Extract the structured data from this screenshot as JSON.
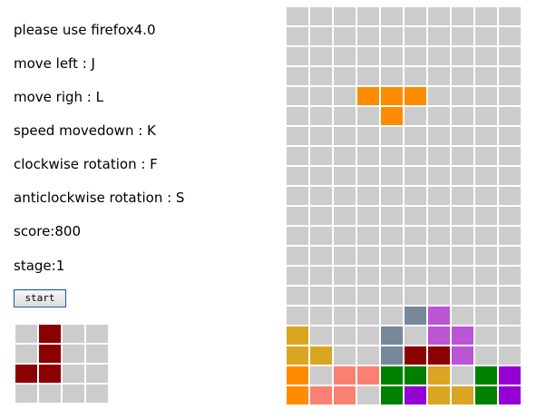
{
  "instructions": [
    "please use firefox4.0",
    "move left : J",
    "move righ : L",
    "speed movedown : K",
    "clockwise rotation : F",
    "anticlockwise rotation : S"
  ],
  "score_text": "score:800",
  "stage_text": "stage:1",
  "start_label": "start",
  "colors": {
    "empty": "#cccccc",
    "background": "#ffffff",
    "O": "#ff8c00",
    "B": "#8b0000",
    "Y": "#daa520",
    "S": "#778899",
    "P": "#ba55d3",
    "K": "#fa8072",
    "G": "#008000",
    "V": "#9400d3"
  },
  "board": [
    "..........",
    "..........",
    "..........",
    "..........",
    "...OOO....",
    "....O.....",
    "..........",
    "..........",
    "..........",
    "..........",
    "..........",
    "..........",
    "..........",
    "..........",
    "..........",
    ".....SP...",
    "Y...S.PP..",
    "YY..SBBP..",
    "O.KKGGY.GV",
    "OKK.GVYYGV"
  ],
  "next_piece": [
    ".B..",
    ".B..",
    "BB..",
    "...."
  ]
}
